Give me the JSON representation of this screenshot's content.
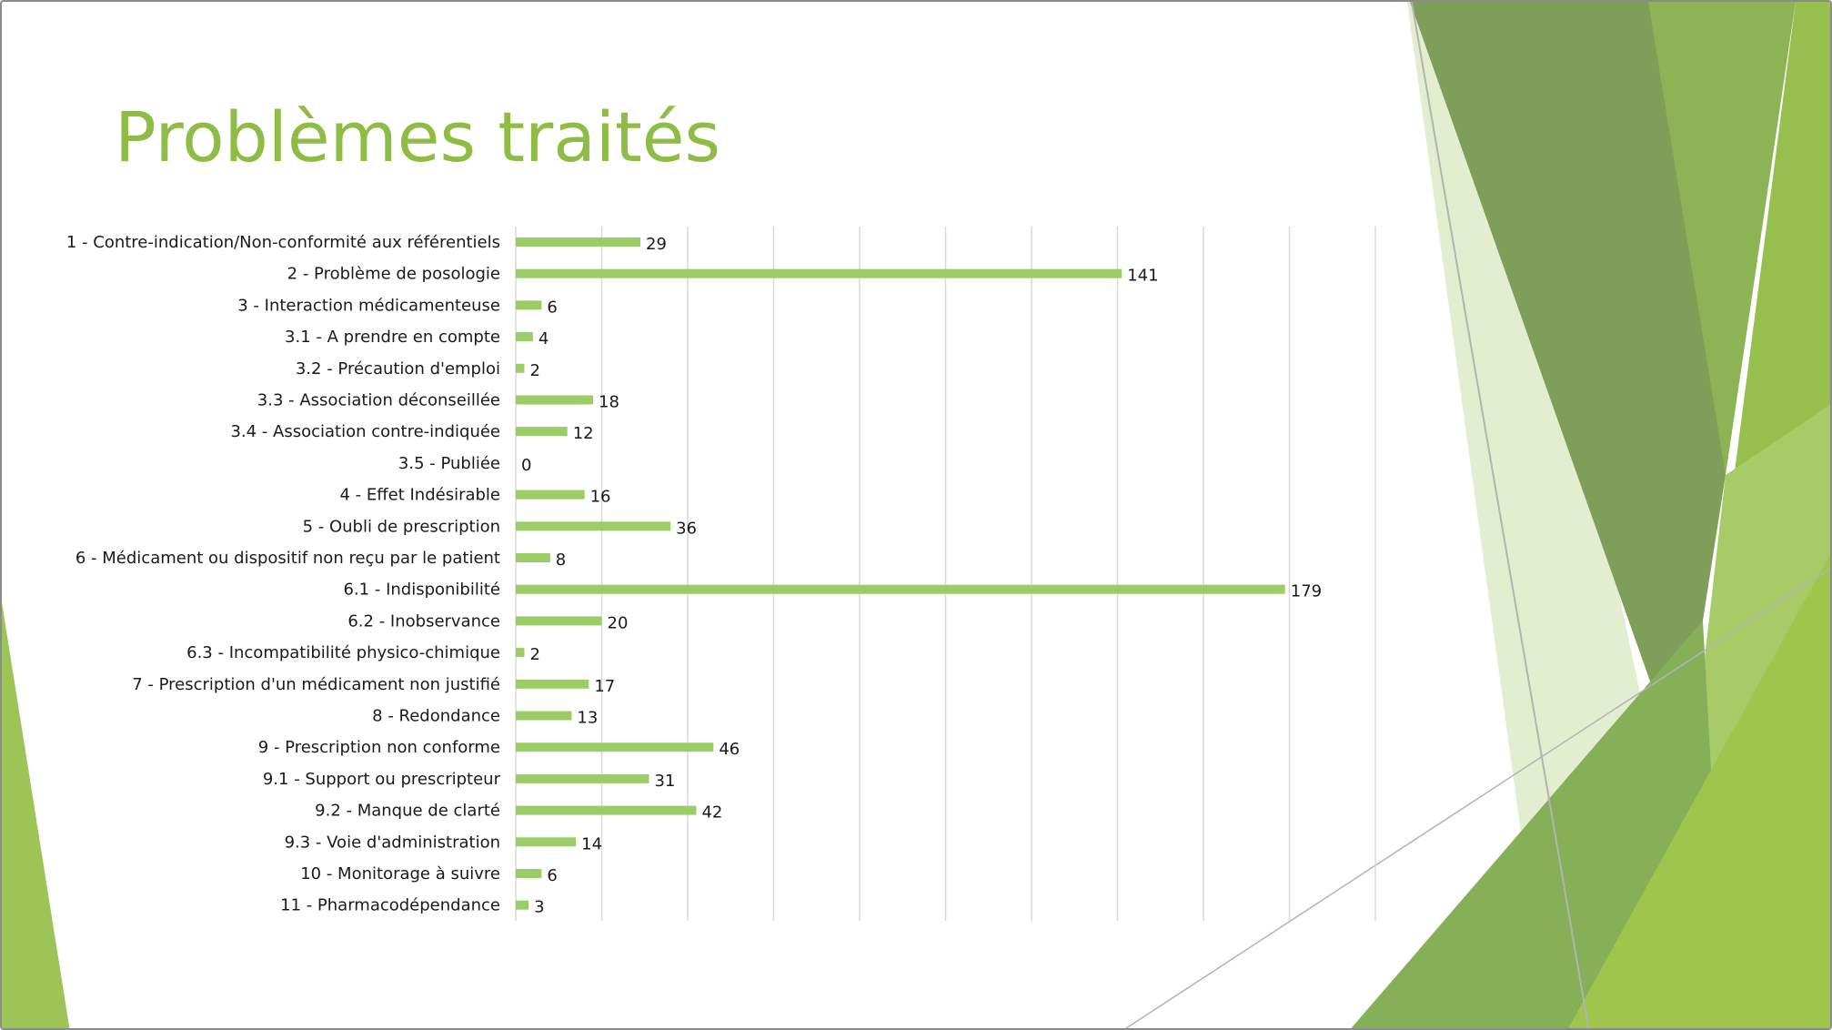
{
  "slide": {
    "title": "Problèmes traités"
  },
  "colors": {
    "title": "#8fbc45",
    "bar": "#9ccc65",
    "gridline": "#d9d9d9",
    "deco_dark": "#6f9447",
    "deco_mid": "#8db454",
    "deco_light": "#c6dc9f"
  },
  "chart_data": {
    "type": "bar",
    "orientation": "horizontal",
    "title": "",
    "xlabel": "",
    "ylabel": "",
    "xlim": [
      0,
      200
    ],
    "grid": true,
    "legend": "none",
    "categories": [
      "1 - Contre-indication/Non-conformité aux référentiels",
      "2 - Problème de posologie",
      "3 - Interaction médicamenteuse",
      "3.1 - A prendre en compte",
      "3.2 - Précaution d'emploi",
      "3.3 - Association déconseillée",
      "3.4 - Association contre-indiquée",
      "3.5 - Publiée",
      "4 - Effet Indésirable",
      "5 - Oubli de prescription",
      "6 - Médicament ou dispositif non reçu par le patient",
      "6.1 - Indisponibilité",
      "6.2 - Inobservance",
      "6.3 - Incompatibilité physico-chimique",
      "7 - Prescription d'un médicament non justifié",
      "8 - Redondance",
      "9 - Prescription non conforme",
      "9.1 - Support ou prescripteur",
      "9.2 - Manque de clarté",
      "9.3 - Voie d'administration",
      "10 - Monitorage à suivre",
      "11 - Pharmacodépendance"
    ],
    "values": [
      29,
      141,
      6,
      4,
      2,
      18,
      12,
      0,
      16,
      36,
      8,
      179,
      20,
      2,
      17,
      13,
      46,
      31,
      42,
      14,
      6,
      3
    ]
  }
}
